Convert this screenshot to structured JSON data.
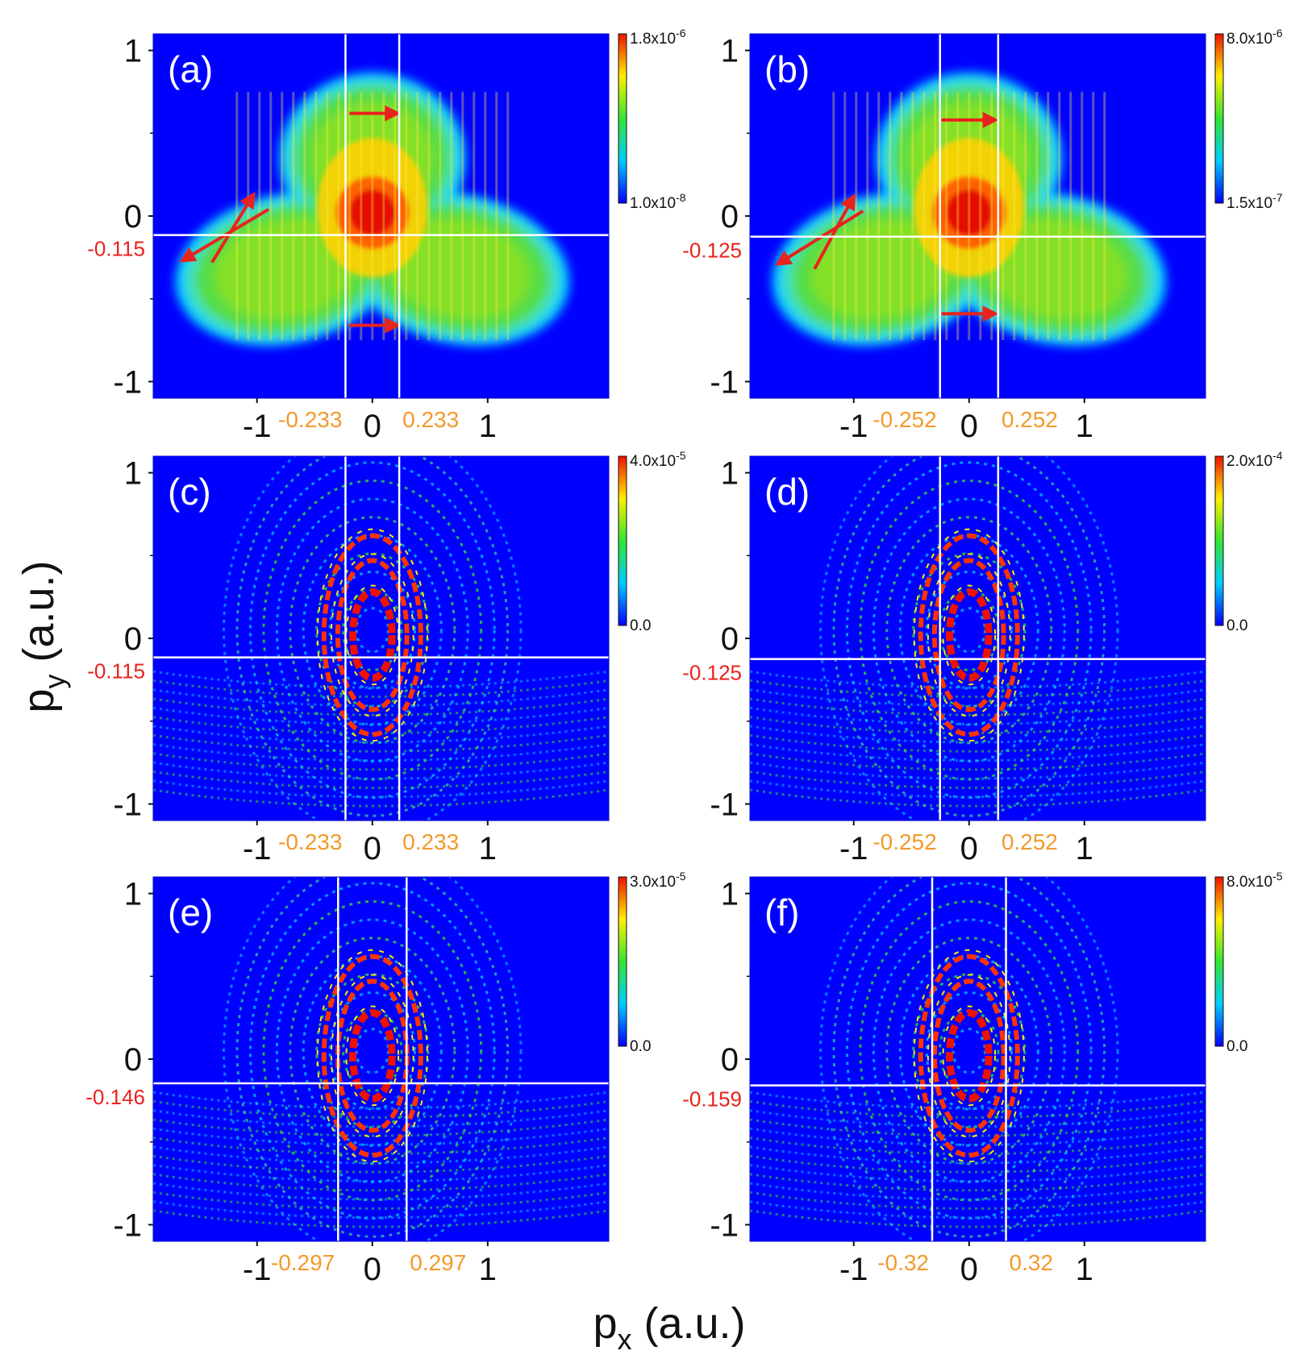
{
  "figure": {
    "ylabel_main": "p",
    "ylabel_sub": "y",
    "ylabel_unit": " (a.u.)",
    "xlabel_main": "p",
    "xlabel_sub": "x",
    "xlabel_unit": " (a.u.)"
  },
  "chart_data": [
    {
      "type": "heatmap",
      "panel": "(a)",
      "pattern": "lobes",
      "xlim": [
        -1.9,
        2.05
      ],
      "ylim": [
        -1.1,
        1.1
      ],
      "xticks": [
        "-1",
        "0",
        "1"
      ],
      "xtick_values": [
        -1,
        0,
        1
      ],
      "yticks": [
        "1",
        "0",
        "-1"
      ],
      "ytick_values": [
        1,
        0,
        -1
      ],
      "colorbar": {
        "max_mant": "1.8x10",
        "max_exp": "-6",
        "min_mant": "1.0x10",
        "min_exp": "-8"
      },
      "vlines": [
        -0.233,
        0.233
      ],
      "vline_labels": [
        "-0.233",
        "0.233"
      ],
      "hline": -0.115,
      "hline_label": "-0.115",
      "arrows": [
        [
          -0.2,
          0.62,
          0.22,
          0.62
        ],
        [
          -0.2,
          -0.66,
          0.22,
          -0.66
        ],
        [
          -0.9,
          0.04,
          -1.65,
          -0.27
        ],
        [
          -1.39,
          -0.28,
          -1.03,
          0.13
        ]
      ]
    },
    {
      "type": "heatmap",
      "panel": "(b)",
      "pattern": "lobes",
      "xlim": [
        -1.9,
        2.05
      ],
      "ylim": [
        -1.1,
        1.1
      ],
      "xticks": [
        "-1",
        "0",
        "1"
      ],
      "xtick_values": [
        -1,
        0,
        1
      ],
      "yticks": [
        "1",
        "0",
        "-1"
      ],
      "ytick_values": [
        1,
        0,
        -1
      ],
      "colorbar": {
        "max_mant": "8.0x10",
        "max_exp": "-6",
        "min_mant": "1.5x10",
        "min_exp": "-7"
      },
      "vlines": [
        -0.252,
        0.252
      ],
      "vline_labels": [
        "-0.252",
        "0.252"
      ],
      "hline": -0.125,
      "hline_label": "-0.125",
      "arrows": [
        [
          -0.24,
          0.58,
          0.23,
          0.58
        ],
        [
          -0.24,
          -0.59,
          0.23,
          -0.59
        ],
        [
          -0.92,
          0.03,
          -1.66,
          -0.29
        ],
        [
          -1.34,
          -0.32,
          -1.0,
          0.12
        ]
      ]
    },
    {
      "type": "heatmap",
      "panel": "(c)",
      "pattern": "rings",
      "xlim": [
        -1.9,
        2.05
      ],
      "ylim": [
        -1.1,
        1.1
      ],
      "xticks": [
        "-1",
        "0",
        "1"
      ],
      "xtick_values": [
        -1,
        0,
        1
      ],
      "yticks": [
        "1",
        "0",
        "-1"
      ],
      "ytick_values": [
        1,
        0,
        -1
      ],
      "colorbar": {
        "max_mant": "4.0x10",
        "max_exp": "-5",
        "min_mant": "0.0",
        "min_exp": ""
      },
      "vlines": [
        -0.233,
        0.233
      ],
      "vline_labels": [
        "-0.233",
        "0.233"
      ],
      "hline": -0.115,
      "hline_label": "-0.115",
      "arrows": []
    },
    {
      "type": "heatmap",
      "panel": "(d)",
      "pattern": "rings",
      "xlim": [
        -1.9,
        2.05
      ],
      "ylim": [
        -1.1,
        1.1
      ],
      "xticks": [
        "-1",
        "0",
        "1"
      ],
      "xtick_values": [
        -1,
        0,
        1
      ],
      "yticks": [
        "1",
        "0",
        "-1"
      ],
      "ytick_values": [
        1,
        0,
        -1
      ],
      "colorbar": {
        "max_mant": "2.0x10",
        "max_exp": "-4",
        "min_mant": "0.0",
        "min_exp": ""
      },
      "vlines": [
        -0.252,
        0.252
      ],
      "vline_labels": [
        "-0.252",
        "0.252"
      ],
      "hline": -0.125,
      "hline_label": "-0.125",
      "arrows": []
    },
    {
      "type": "heatmap",
      "panel": "(e)",
      "pattern": "rings",
      "xlim": [
        -1.9,
        2.05
      ],
      "ylim": [
        -1.1,
        1.1
      ],
      "xticks": [
        "-1",
        "0",
        "1"
      ],
      "xtick_values": [
        -1,
        0,
        1
      ],
      "yticks": [
        "1",
        "0",
        "-1"
      ],
      "ytick_values": [
        1,
        0,
        -1
      ],
      "colorbar": {
        "max_mant": "3.0x10",
        "max_exp": "-5",
        "min_mant": "0.0",
        "min_exp": ""
      },
      "vlines": [
        -0.297,
        0.297
      ],
      "vline_labels": [
        "-0.297",
        "0.297"
      ],
      "hline": -0.146,
      "hline_label": "-0.146",
      "arrows": []
    },
    {
      "type": "heatmap",
      "panel": "(f)",
      "pattern": "rings",
      "xlim": [
        -1.9,
        2.05
      ],
      "ylim": [
        -1.1,
        1.1
      ],
      "xticks": [
        "-1",
        "0",
        "1"
      ],
      "xtick_values": [
        -1,
        0,
        1
      ],
      "yticks": [
        "1",
        "0",
        "-1"
      ],
      "ytick_values": [
        1,
        0,
        -1
      ],
      "colorbar": {
        "max_mant": "8.0x10",
        "max_exp": "-5",
        "min_mant": "0.0",
        "min_exp": ""
      },
      "vlines": [
        -0.32,
        0.32
      ],
      "vline_labels": [
        "-0.32",
        "0.32"
      ],
      "hline": -0.159,
      "hline_label": "-0.159",
      "arrows": []
    }
  ]
}
